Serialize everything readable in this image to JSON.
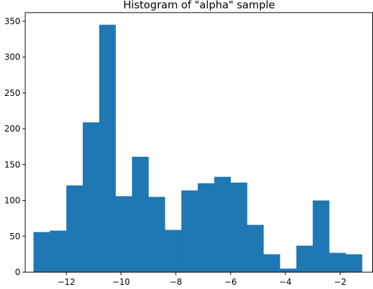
{
  "chart_data": {
    "type": "bar",
    "title": "Histogram of \"alpha\" sample",
    "xlabel": "",
    "ylabel": "",
    "bar_color": "#1f77b4",
    "grid": false,
    "legend": "none",
    "xlim": [
      -13.5,
      -0.8
    ],
    "ylim": [
      0,
      362
    ],
    "bin_edges": [
      -13.2,
      -12.6,
      -12.0,
      -11.4,
      -10.8,
      -10.2,
      -9.6,
      -9.0,
      -8.4,
      -7.8,
      -7.2,
      -6.6,
      -6.0,
      -5.4,
      -4.8,
      -4.2,
      -3.6,
      -3.0,
      -2.4,
      -1.8,
      -1.2
    ],
    "values": [
      56,
      58,
      121,
      209,
      345,
      106,
      161,
      105,
      59,
      114,
      124,
      133,
      125,
      66,
      25,
      5,
      37,
      100,
      27,
      25
    ],
    "xticks": [
      -12,
      -10,
      -8,
      -6,
      -4,
      -2
    ],
    "xtick_labels": [
      "−12",
      "−10",
      "−8",
      "−6",
      "−4",
      "−2"
    ],
    "yticks": [
      0,
      50,
      100,
      150,
      200,
      250,
      300,
      350
    ],
    "ytick_labels": [
      "0",
      "50",
      "100",
      "150",
      "200",
      "250",
      "300",
      "350"
    ]
  }
}
